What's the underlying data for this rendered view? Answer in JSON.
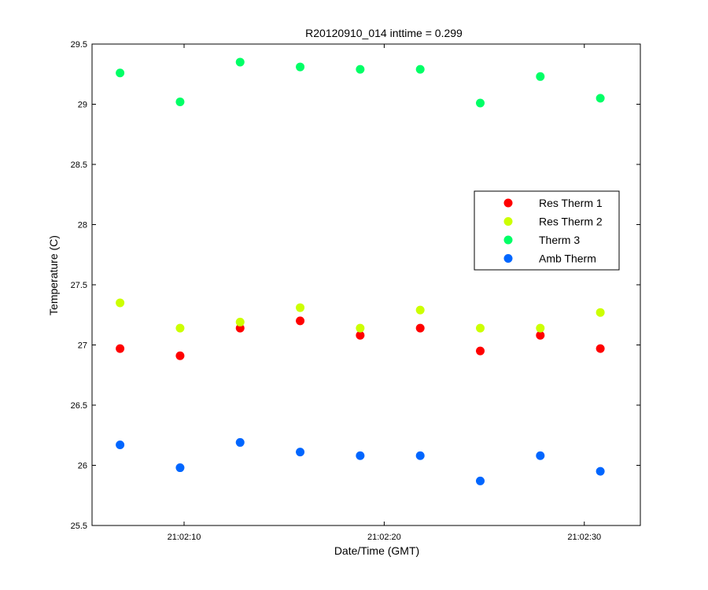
{
  "chart_data": {
    "type": "scatter",
    "title": "R20120910_014 inttime = 0.299",
    "xlabel": "Date/Time (GMT)",
    "ylabel": "Temperature (C)",
    "xlim": [
      5.4,
      32.8
    ],
    "ylim": [
      25.5,
      29.5
    ],
    "x_ticks": [
      {
        "value": 10,
        "label": "21:02:10"
      },
      {
        "value": 20,
        "label": "21:02:20"
      },
      {
        "value": 30,
        "label": "21:02:30"
      }
    ],
    "y_ticks": [
      {
        "value": 25.5,
        "label": "25.5"
      },
      {
        "value": 26,
        "label": "26"
      },
      {
        "value": 26.5,
        "label": "26.5"
      },
      {
        "value": 27,
        "label": "27"
      },
      {
        "value": 27.5,
        "label": "27.5"
      },
      {
        "value": 28,
        "label": "28"
      },
      {
        "value": 28.5,
        "label": "28.5"
      },
      {
        "value": 29,
        "label": "29"
      },
      {
        "value": 29.5,
        "label": "29.5"
      }
    ],
    "grid": false,
    "legend_position": "right-middle",
    "x": [
      6.8,
      9.8,
      12.8,
      15.8,
      18.8,
      21.8,
      24.8,
      27.8,
      30.8
    ],
    "series": [
      {
        "name": "Res Therm 1",
        "color": "#ff0000",
        "values": [
          26.97,
          26.91,
          27.14,
          27.2,
          27.08,
          27.14,
          26.95,
          27.08,
          26.97
        ]
      },
      {
        "name": "Res Therm 2",
        "color": "#ccff00",
        "values": [
          27.35,
          27.14,
          27.19,
          27.31,
          27.14,
          27.29,
          27.14,
          27.14,
          27.27
        ]
      },
      {
        "name": "Therm 3",
        "color": "#00ff66",
        "values": [
          29.26,
          29.02,
          29.35,
          29.31,
          29.29,
          29.29,
          29.01,
          29.23,
          29.05
        ]
      },
      {
        "name": "Amb Therm",
        "color": "#0066ff",
        "values": [
          26.17,
          25.98,
          26.19,
          26.11,
          26.08,
          26.08,
          25.87,
          26.08,
          25.95
        ]
      }
    ]
  }
}
